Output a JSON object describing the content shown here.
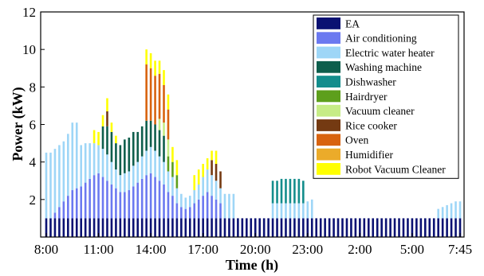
{
  "chart_data": {
    "type": "bar",
    "stacked": true,
    "xlabel": "Time (h)",
    "ylabel": "Power (kW)",
    "ylim": [
      0,
      12
    ],
    "yticks": [
      "2",
      "4",
      "6",
      "8",
      "10",
      "12"
    ],
    "xticks": [
      {
        "label": "8:00",
        "index": 0
      },
      {
        "label": "11:00",
        "index": 12
      },
      {
        "label": "14:00",
        "index": 24
      },
      {
        "label": "17:00",
        "index": 36
      },
      {
        "label": "20:00",
        "index": 48
      },
      {
        "label": "23:00",
        "index": 60
      },
      {
        "label": "2:00",
        "index": 72
      },
      {
        "label": "5:00",
        "index": 84
      },
      {
        "label": "7:45",
        "index": 95
      }
    ],
    "interval_minutes": 15,
    "x_start": "8:00",
    "legend_position": "top-right",
    "series": [
      {
        "name": "EA",
        "color": "#0a1172",
        "values": [
          1,
          1,
          1,
          1,
          1,
          1,
          1,
          1,
          1,
          1,
          1,
          1,
          1,
          1,
          1,
          1,
          1,
          1,
          1,
          1,
          1,
          1,
          1,
          1,
          1,
          1,
          1,
          1,
          1,
          1,
          1,
          1,
          1,
          1,
          1,
          1,
          1,
          1,
          1,
          1,
          1,
          1,
          1,
          1,
          1,
          1,
          1,
          1,
          1,
          1,
          1,
          1,
          1,
          1,
          1,
          1,
          1,
          1,
          1,
          1,
          1,
          1,
          1,
          1,
          1,
          1,
          1,
          1,
          1,
          1,
          1,
          1,
          1,
          1,
          1,
          1,
          1,
          1,
          1,
          1,
          1,
          1,
          1,
          1,
          1,
          1,
          1,
          1,
          1,
          1,
          1,
          1,
          1,
          1,
          1,
          1
        ]
      },
      {
        "name": "Air conditioning",
        "color": "#6b79f0",
        "values": [
          0,
          0,
          0.3,
          0.6,
          0.9,
          1.2,
          1.5,
          1.6,
          1.7,
          1.9,
          2.1,
          2.3,
          2.4,
          2.2,
          2.0,
          1.8,
          1.6,
          1.4,
          1.4,
          1.5,
          1.7,
          1.9,
          2.1,
          2.3,
          2.4,
          2.2,
          2.0,
          1.8,
          1.4,
          1.2,
          0.8,
          0.6,
          0.5,
          0.6,
          0.8,
          1.0,
          1.2,
          1.4,
          1.2,
          1.0,
          0.8,
          0,
          0,
          0,
          0,
          0,
          0,
          0,
          0,
          0,
          0,
          0,
          0,
          0,
          0,
          0,
          0,
          0,
          0,
          0,
          0,
          0,
          0,
          0,
          0,
          0,
          0,
          0,
          0,
          0,
          0,
          0,
          0,
          0,
          0,
          0,
          0,
          0,
          0,
          0,
          0,
          0,
          0,
          0,
          0,
          0,
          0,
          0,
          0,
          0,
          0,
          0,
          0,
          0,
          0,
          0
        ]
      },
      {
        "name": "Electric water heater",
        "color": "#9ed6f7",
        "values": [
          3.5,
          3.5,
          3.4,
          3.3,
          3.2,
          3.3,
          3.6,
          3.5,
          2.2,
          2.1,
          1.9,
          1.7,
          1.5,
          1.5,
          1.4,
          1.2,
          1.0,
          0.9,
          1.0,
          1.0,
          1.1,
          1.1,
          1.2,
          1.3,
          1.4,
          1.4,
          1.3,
          1.2,
          1.1,
          1.0,
          0.8,
          0.7,
          0.6,
          0.6,
          0.7,
          0.8,
          1.0,
          1.2,
          1.1,
          1.0,
          0.8,
          1.3,
          1.3,
          1.3,
          0,
          0,
          0,
          0,
          0,
          0,
          0,
          0,
          0.8,
          0.8,
          0.8,
          0.8,
          0.8,
          0.8,
          0.8,
          0.8,
          0.9,
          1.0,
          0,
          0,
          0,
          0,
          0,
          0,
          0,
          0,
          0,
          0,
          0,
          0,
          0,
          0,
          0,
          0,
          0,
          0,
          0,
          0,
          0,
          0,
          0,
          0,
          0,
          0,
          0,
          0,
          0.5,
          0.6,
          0.7,
          0.8,
          0.9,
          0.9
        ]
      },
      {
        "name": "Washing machine",
        "color": "#0e5e4c",
        "values": [
          0,
          0,
          0,
          0,
          0,
          0,
          0,
          0,
          0,
          0,
          0,
          0,
          0,
          1.2,
          1.5,
          1.6,
          1.4,
          1.6,
          1.8,
          1.8,
          1.8,
          1.6,
          1.6,
          1.6,
          1.4,
          1.4,
          1.4,
          1.4,
          0,
          0,
          0,
          0,
          0,
          0,
          0,
          0,
          0,
          0,
          0,
          0,
          0,
          0,
          0,
          0,
          0,
          0,
          0,
          0,
          0,
          0,
          0,
          0,
          0,
          0,
          0,
          0,
          0,
          0,
          0,
          0,
          0,
          0,
          0,
          0,
          0,
          0,
          0,
          0,
          0,
          0,
          0,
          0,
          0,
          0,
          0,
          0,
          0,
          0,
          0,
          0,
          0,
          0,
          0,
          0,
          0,
          0,
          0,
          0,
          0,
          0,
          0,
          0,
          0,
          0,
          0,
          0
        ]
      },
      {
        "name": "Dishwasher",
        "color": "#138d8c",
        "values": [
          0,
          0,
          0,
          0,
          0,
          0,
          0,
          0,
          0,
          0,
          0,
          0,
          0,
          0,
          0,
          0,
          0,
          0,
          0,
          0,
          0,
          0,
          0,
          0,
          0,
          0,
          0,
          0,
          0,
          0,
          0,
          0,
          0,
          0,
          0,
          0,
          0,
          0,
          0,
          0,
          0,
          0,
          0,
          0,
          0,
          0,
          0,
          0,
          0,
          0,
          0,
          0,
          1.2,
          1.2,
          1.3,
          1.3,
          1.3,
          1.3,
          1.3,
          1.2,
          0,
          0,
          0,
          0,
          0,
          0,
          0,
          0,
          0,
          0,
          0,
          0,
          0,
          0,
          0,
          0,
          0,
          0,
          0,
          0,
          0,
          0,
          0,
          0,
          0,
          0,
          0,
          0,
          0,
          0,
          0,
          0,
          0,
          0,
          0,
          0
        ]
      },
      {
        "name": "Hairdryer",
        "color": "#5d9f1c",
        "values": [
          0,
          0,
          0,
          0,
          0,
          0,
          0,
          0,
          0,
          0,
          0,
          0,
          0,
          0,
          0,
          0,
          0,
          0,
          0,
          0,
          0,
          0,
          0,
          0,
          0,
          0,
          0,
          0,
          0.8,
          0.8,
          0.7,
          0,
          0,
          0,
          0,
          0,
          0,
          0,
          0,
          0,
          0,
          0,
          0,
          0,
          0,
          0,
          0,
          0,
          0,
          0,
          0,
          0,
          0,
          0,
          0,
          0,
          0,
          0,
          0,
          0,
          0,
          0,
          0,
          0,
          0,
          0,
          0,
          0,
          0,
          0,
          0,
          0,
          0,
          0,
          0,
          0,
          0,
          0,
          0,
          0,
          0,
          0,
          0,
          0,
          0,
          0,
          0,
          0,
          0,
          0,
          0,
          0,
          0,
          0,
          0,
          0,
          0,
          0
        ]
      },
      {
        "name": "Vacuum cleaner",
        "color": "#c6ec86",
        "values": [
          0,
          0,
          0,
          0,
          0,
          0,
          0,
          0,
          0,
          0,
          0,
          0,
          0,
          0,
          0,
          0,
          0,
          0,
          0,
          0,
          0,
          0,
          0,
          0,
          0,
          0,
          0.6,
          0.7,
          0.9,
          0,
          0,
          0,
          0,
          0,
          0,
          0,
          0,
          0,
          0,
          0,
          0,
          0,
          0,
          0,
          0,
          0,
          0,
          0,
          0,
          0,
          0,
          0,
          0,
          0,
          0,
          0,
          0,
          0,
          0,
          0,
          0,
          0,
          0,
          0,
          0,
          0,
          0,
          0,
          0,
          0,
          0,
          0,
          0,
          0,
          0,
          0,
          0,
          0,
          0,
          0,
          0,
          0,
          0,
          0,
          0,
          0,
          0,
          0,
          0,
          0,
          0,
          0,
          0,
          0,
          0,
          0,
          0,
          0
        ]
      },
      {
        "name": "Rice cooker",
        "color": "#743a12",
        "values": [
          0,
          0,
          0,
          0,
          0,
          0,
          0,
          0,
          0,
          0,
          0,
          0,
          0,
          0,
          0.8,
          0,
          0,
          0,
          0,
          0,
          0,
          0,
          0,
          0,
          0,
          0,
          0,
          0,
          0,
          0,
          0,
          0,
          0,
          0,
          0,
          0,
          0,
          0,
          0.8,
          0.9,
          0.9,
          0,
          0,
          0,
          0,
          0,
          0,
          0,
          0,
          0,
          0,
          0,
          0,
          0,
          0,
          0,
          0,
          0,
          0,
          0,
          0,
          0,
          0,
          0,
          0,
          0,
          0,
          0,
          0,
          0,
          0,
          0,
          0,
          0,
          0,
          0,
          0,
          0,
          0,
          0,
          0,
          0,
          0,
          0,
          0,
          0,
          0,
          0,
          0,
          0,
          0,
          0,
          0,
          0,
          0,
          0,
          0,
          0
        ]
      },
      {
        "name": "Oven",
        "color": "#d8630f",
        "values": [
          0,
          0,
          0,
          0,
          0,
          0,
          0,
          0,
          0,
          0,
          0,
          0,
          0,
          0,
          0,
          0,
          0,
          0,
          0,
          0,
          0,
          0,
          0,
          3.0,
          2.8,
          2.6,
          2.4,
          2.0,
          1.6,
          0,
          0,
          0,
          0,
          0,
          0,
          0,
          0,
          0,
          0,
          0,
          0,
          0,
          0,
          0,
          0,
          0,
          0,
          0,
          0,
          0,
          0,
          0,
          0,
          0,
          0,
          0,
          0,
          0,
          0,
          0,
          0,
          0,
          0,
          0,
          0,
          0,
          0,
          0,
          0,
          0,
          0,
          0,
          0,
          0,
          0,
          0,
          0,
          0,
          0,
          0,
          0,
          0,
          0,
          0,
          0,
          0,
          0,
          0,
          0,
          0,
          0,
          0,
          0,
          0,
          0,
          0
        ]
      },
      {
        "name": "Humidifier",
        "color": "#ebab2a",
        "values": [
          0,
          0,
          0,
          0,
          0,
          0,
          0,
          0,
          0,
          0,
          0,
          0,
          0,
          0,
          0,
          0,
          0,
          0,
          0,
          0,
          0,
          0,
          0,
          0,
          0,
          0,
          0,
          0,
          0,
          0,
          0,
          0,
          0,
          0,
          0,
          0,
          0,
          0,
          0,
          0,
          0,
          0,
          0,
          0,
          0,
          0,
          0,
          0,
          0,
          0,
          0,
          0,
          0,
          0,
          0,
          0,
          0,
          0,
          0,
          0,
          0,
          0,
          0,
          0,
          0,
          0,
          0,
          0,
          0,
          0,
          0,
          0,
          0,
          0,
          0,
          0,
          0,
          0,
          0,
          0,
          0,
          0,
          0,
          0,
          0,
          0,
          0,
          0,
          0,
          0,
          0,
          0,
          0,
          0,
          0,
          0
        ]
      },
      {
        "name": "Robot Vacuum Cleaner",
        "color": "#ffff00",
        "values": [
          0,
          0,
          0,
          0,
          0,
          0,
          0,
          0,
          0,
          0,
          0,
          0.7,
          0.7,
          0.6,
          0.7,
          0.5,
          0.4,
          0,
          0,
          0,
          0,
          0,
          0,
          0.8,
          0.8,
          0.8,
          0.7,
          0.8,
          0.8,
          0.8,
          0.8,
          0,
          0,
          0,
          0.8,
          0.8,
          0.7,
          0.6,
          0.5,
          0.7,
          0,
          0,
          0,
          0,
          0,
          0,
          0,
          0,
          0,
          0,
          0,
          0,
          0,
          0,
          0,
          0,
          0,
          0,
          0,
          0,
          0,
          0,
          0,
          0,
          0,
          0,
          0,
          0,
          0,
          0,
          0,
          0,
          0,
          0,
          0,
          0,
          0,
          0,
          0,
          0,
          0,
          0,
          0,
          0,
          0,
          0,
          0,
          0,
          0,
          0,
          0,
          0,
          0,
          0,
          0,
          0,
          0
        ]
      }
    ]
  }
}
